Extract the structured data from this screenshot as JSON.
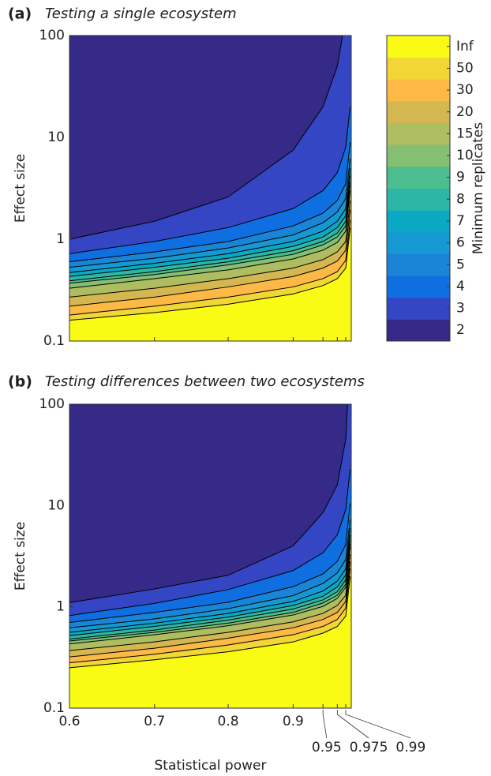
{
  "chart_data": [
    {
      "type": "contour",
      "panel_label": "(a)",
      "title": "Testing a single ecosystem",
      "ylabel": "Effect size",
      "xscale": "log",
      "yscale": "log",
      "xlim": [
        0.6,
        1
      ],
      "ylim": [
        0.1,
        100
      ],
      "xticks": [
        0.6,
        0.7,
        0.8,
        0.9,
        0.95,
        0.975,
        0.99
      ],
      "yticks": [
        0.1,
        1,
        10,
        100
      ],
      "xticklabels": false,
      "x": [
        0.6,
        0.7,
        0.8,
        0.9,
        0.95,
        0.975,
        0.99,
        0.998
      ],
      "contours": [
        {
          "values": [
            1.0,
            1.5,
            2.6,
            7.5,
            20,
            50,
            150,
            600
          ]
        },
        {
          "values": [
            0.72,
            0.95,
            1.3,
            2.0,
            3.0,
            4.5,
            8,
            20
          ]
        },
        {
          "values": [
            0.6,
            0.75,
            0.95,
            1.35,
            1.8,
            2.4,
            3.5,
            9
          ]
        },
        {
          "values": [
            0.53,
            0.65,
            0.82,
            1.1,
            1.45,
            1.85,
            2.5,
            6.2
          ]
        },
        {
          "values": [
            0.47,
            0.58,
            0.72,
            0.95,
            1.2,
            1.5,
            2.0,
            5
          ]
        },
        {
          "values": [
            0.43,
            0.53,
            0.65,
            0.85,
            1.05,
            1.3,
            1.7,
            4.2
          ]
        },
        {
          "values": [
            0.39,
            0.48,
            0.6,
            0.77,
            0.95,
            1.15,
            1.5,
            3.7
          ]
        },
        {
          "values": [
            0.37,
            0.45,
            0.56,
            0.71,
            0.88,
            1.05,
            1.35,
            3.4
          ]
        },
        {
          "values": [
            0.33,
            0.41,
            0.5,
            0.64,
            0.78,
            0.93,
            1.2,
            3
          ]
        },
        {
          "values": [
            0.27,
            0.33,
            0.41,
            0.52,
            0.63,
            0.75,
            0.95,
            2.4
          ]
        },
        {
          "values": [
            0.22,
            0.27,
            0.34,
            0.43,
            0.52,
            0.61,
            0.78,
            1.95
          ]
        },
        {
          "values": [
            0.18,
            0.22,
            0.27,
            0.34,
            0.41,
            0.48,
            0.62,
            1.55
          ]
        },
        {
          "values": [
            0.16,
            0.19,
            0.23,
            0.29,
            0.35,
            0.41,
            0.52,
            1.3
          ]
        }
      ],
      "colorbar": {
        "label": "Minimum replicates",
        "ticks": [
          2,
          3,
          4,
          5,
          6,
          7,
          8,
          9,
          10,
          15,
          20,
          30,
          50,
          "Inf"
        ],
        "colors": [
          "#352a87",
          "#3446c4",
          "#0f6ee0",
          "#1a85d6",
          "#1698d2",
          "#0aa8c3",
          "#2bb6a5",
          "#4bbd8e",
          "#85bf73",
          "#aebd60",
          "#d4b751",
          "#fcb945",
          "#f1d636",
          "#f9fb14"
        ]
      }
    },
    {
      "type": "contour",
      "panel_label": "(b)",
      "title": "Testing differences between two ecosystems",
      "ylabel": "Effect size",
      "xlabel": "Statistical power",
      "xscale": "log",
      "yscale": "log",
      "xlim": [
        0.6,
        1
      ],
      "ylim": [
        0.1,
        100
      ],
      "xticks": [
        0.6,
        0.7,
        0.8,
        0.9,
        0.95,
        0.975,
        0.99
      ],
      "yticks": [
        0.1,
        1,
        10,
        100
      ],
      "xticklabels": true,
      "x": [
        0.6,
        0.7,
        0.8,
        0.9,
        0.95,
        0.975,
        0.99,
        0.998
      ],
      "contours": [
        {
          "values": [
            1.1,
            1.5,
            2.05,
            4.0,
            8.5,
            16,
            45,
            300
          ]
        },
        {
          "values": [
            0.82,
            1.08,
            1.48,
            2.28,
            3.42,
            5.13,
            9.1,
            23
          ]
        },
        {
          "values": [
            0.7,
            0.88,
            1.11,
            1.58,
            2.11,
            2.81,
            4.1,
            10.5
          ]
        },
        {
          "values": [
            0.62,
            0.76,
            0.96,
            1.29,
            1.7,
            2.16,
            2.93,
            7.3
          ]
        },
        {
          "values": [
            0.56,
            0.69,
            0.86,
            1.13,
            1.43,
            1.79,
            2.38,
            6
          ]
        },
        {
          "values": [
            0.52,
            0.64,
            0.79,
            1.03,
            1.27,
            1.57,
            2.06,
            5.1
          ]
        },
        {
          "values": [
            0.48,
            0.59,
            0.74,
            0.95,
            1.17,
            1.41,
            1.85,
            4.6
          ]
        },
        {
          "values": [
            0.46,
            0.56,
            0.69,
            0.88,
            1.09,
            1.3,
            1.67,
            4.2
          ]
        },
        {
          "values": [
            0.43,
            0.53,
            0.65,
            0.83,
            1.01,
            1.21,
            1.56,
            3.9
          ]
        },
        {
          "values": [
            0.37,
            0.45,
            0.56,
            0.71,
            0.86,
            1.03,
            1.3,
            3.3
          ]
        },
        {
          "values": [
            0.32,
            0.39,
            0.49,
            0.62,
            0.75,
            0.88,
            1.13,
            2.8
          ]
        },
        {
          "values": [
            0.28,
            0.34,
            0.42,
            0.53,
            0.64,
            0.75,
            0.97,
            2.4
          ]
        },
        {
          "values": [
            0.25,
            0.3,
            0.36,
            0.45,
            0.55,
            0.64,
            0.81,
            2.0
          ]
        }
      ]
    }
  ]
}
